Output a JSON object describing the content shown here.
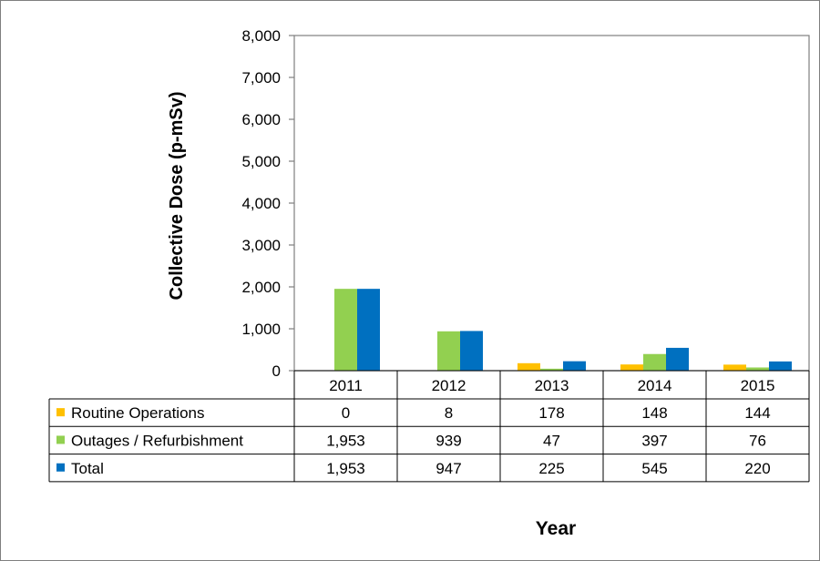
{
  "chart_data": {
    "type": "bar",
    "title": "",
    "xlabel": "Year",
    "ylabel": "Collective Dose (p-mSv)",
    "categories": [
      "2011",
      "2012",
      "2013",
      "2014",
      "2015"
    ],
    "ylim": [
      0,
      8000
    ],
    "yticks": [
      0,
      1000,
      2000,
      3000,
      4000,
      5000,
      6000,
      7000,
      8000
    ],
    "ytick_labels": [
      "0",
      "1,000",
      "2,000",
      "3,000",
      "4,000",
      "5,000",
      "6,000",
      "7,000",
      "8,000"
    ],
    "grid": false,
    "legend": "data-table",
    "series": [
      {
        "name": "Routine Operations",
        "color": "#ffc000",
        "values": [
          0,
          8,
          178,
          148,
          144
        ],
        "labels": [
          "0",
          "8",
          "178",
          "148",
          "144"
        ]
      },
      {
        "name": "Outages / Refurbishment",
        "color": "#92d050",
        "values": [
          1953,
          939,
          47,
          397,
          76
        ],
        "labels": [
          "1,953",
          "939",
          "47",
          "397",
          "76"
        ]
      },
      {
        "name": "Total",
        "color": "#0070c0",
        "values": [
          1953,
          947,
          225,
          545,
          220
        ],
        "labels": [
          "1,953",
          "947",
          "225",
          "545",
          "220"
        ]
      }
    ]
  }
}
